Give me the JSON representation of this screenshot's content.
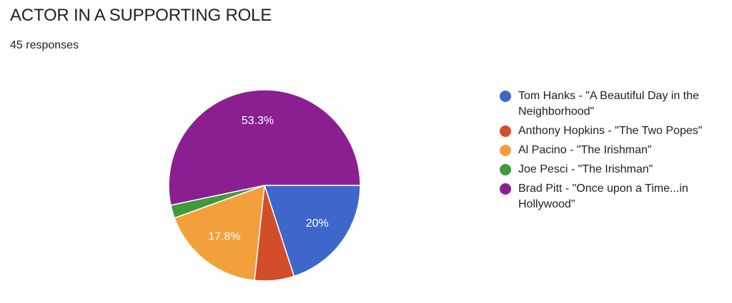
{
  "header": {
    "title": "ACTOR IN A SUPPORTING ROLE",
    "responses": "45 responses"
  },
  "chart_data": {
    "type": "pie",
    "title": "ACTOR IN A SUPPORTING ROLE",
    "legend_position": "right",
    "slices": [
      {
        "label": "Tom Hanks - \"A Beautiful Day in the Neighborhood\"",
        "value": 9,
        "percent_label": "20%",
        "color": "#3d67c9"
      },
      {
        "label": "Anthony Hopkins - \"The Two Popes\"",
        "value": 3,
        "percent_label": "",
        "color": "#d24d2a"
      },
      {
        "label": "Al Pacino - \"The Irishman\"",
        "value": 8,
        "percent_label": "17.8%",
        "color": "#f2a03b"
      },
      {
        "label": "Joe Pesci - \"The Irishman\"",
        "value": 1,
        "percent_label": "",
        "color": "#3f9a3a"
      },
      {
        "label": "Brad Pitt - \"Once upon a Time...in Hollywood\"",
        "value": 24,
        "percent_label": "53.3%",
        "color": "#8b1f92"
      }
    ]
  }
}
